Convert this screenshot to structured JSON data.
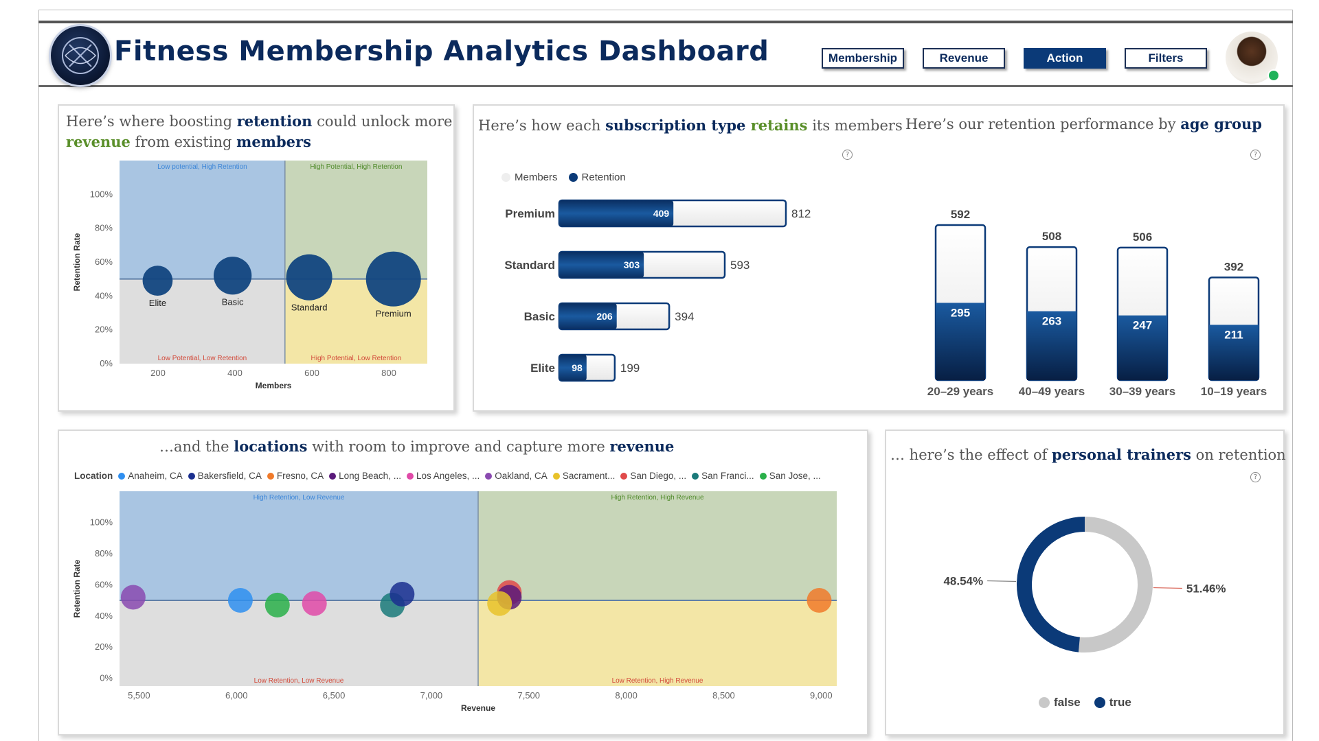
{
  "header": {
    "title": "Fitness Membership Analytics Dashboard",
    "nav": [
      "Membership",
      "Revenue",
      "Action",
      "Filters"
    ],
    "active_nav": "Action"
  },
  "colors": {
    "brand": "#0b2a5c",
    "accent_green": "#5a8f2a",
    "q_blue": "#a9c5e2",
    "q_green": "#c8d6b9",
    "q_grey": "#dedede",
    "q_yellow": "#f3e6a6",
    "bubble": "#12467f"
  },
  "retention_card": {
    "title_parts": [
      "Here’s where boosting ",
      "retention",
      " could unlock more ",
      "revenue",
      " from existing ",
      "members"
    ]
  },
  "subscription_card": {
    "title_parts": [
      "Here’s how each ",
      "subscription type",
      " retains",
      " its members"
    ],
    "legend": [
      "Members",
      "Retention"
    ]
  },
  "age_card": {
    "title_parts": [
      "Here’s our retention performance by ",
      "age group"
    ]
  },
  "location_card": {
    "title_parts": [
      "…and the ",
      "locations",
      " with room to improve and capture more ",
      "revenue"
    ],
    "legend_label": "Location",
    "legend": [
      {
        "name": "Anaheim, CA",
        "color": "#2f8ff0"
      },
      {
        "name": "Bakersfield, CA",
        "color": "#1b2f8f"
      },
      {
        "name": "Fresno, CA",
        "color": "#f07a2a"
      },
      {
        "name": "Long Beach, ...",
        "color": "#5a1a7a"
      },
      {
        "name": "Los Angeles, ...",
        "color": "#e04aa8"
      },
      {
        "name": "Oakland, CA",
        "color": "#8a4ab0"
      },
      {
        "name": "Sacrament...",
        "color": "#e8c22a"
      },
      {
        "name": "San Diego, ...",
        "color": "#e04a4a"
      },
      {
        "name": "San Franci...",
        "color": "#1a7a7a"
      },
      {
        "name": "San Jose, ...",
        "color": "#2ab04a"
      }
    ]
  },
  "trainer_card": {
    "title_parts": [
      "… here’s the effect of ",
      "personal trainers",
      " on retention"
    ],
    "legend": [
      {
        "name": "false",
        "color": "#c8c8c8"
      },
      {
        "name": "true",
        "color": "#0b3a78"
      }
    ]
  },
  "chart_data": [
    {
      "id": "retention_scatter",
      "type": "scatter",
      "title": "Here’s where boosting retention could unlock more revenue from existing members",
      "xlabel": "Members",
      "ylabel": "Retention Rate",
      "xlim": [
        100,
        900
      ],
      "ylim": [
        0,
        1.2
      ],
      "xticks": [
        200,
        400,
        600,
        800
      ],
      "xtick_labels": [
        "200",
        "400",
        "600",
        "800"
      ],
      "yticks": [
        0,
        0.2,
        0.4,
        0.6,
        0.8,
        1.0
      ],
      "ytick_labels": [
        "0%",
        "20%",
        "40%",
        "60%",
        "80%",
        "100%"
      ],
      "x_divider": 530,
      "reference_y": 0.5,
      "quadrants": [
        "Low potential, High Retention",
        "High Potential, High Retention",
        "Low Potential, Low Retention",
        "High Potential, Low Retention"
      ],
      "points": [
        {
          "label": "Elite",
          "members": 199,
          "retention": 0.49
        },
        {
          "label": "Basic",
          "members": 394,
          "retention": 0.52
        },
        {
          "label": "Standard",
          "members": 593,
          "retention": 0.51
        },
        {
          "label": "Premium",
          "members": 812,
          "retention": 0.5
        }
      ]
    },
    {
      "id": "subscription_bars",
      "type": "bar",
      "title": "Here’s how each subscription type retains its members",
      "categories": [
        "Premium",
        "Standard",
        "Basic",
        "Elite"
      ],
      "series": [
        {
          "name": "Members",
          "values": [
            812,
            593,
            394,
            199
          ]
        },
        {
          "name": "Retention",
          "values": [
            409,
            303,
            206,
            98
          ]
        }
      ]
    },
    {
      "id": "age_bars",
      "type": "bar",
      "title": "Here’s our retention performance by age group",
      "categories": [
        "20–29 years",
        "40–49 years",
        "30–39 years",
        "10–19 years"
      ],
      "series": [
        {
          "name": "Members",
          "values": [
            592,
            508,
            506,
            392
          ]
        },
        {
          "name": "Retention",
          "values": [
            295,
            263,
            247,
            211
          ]
        }
      ]
    },
    {
      "id": "location_scatter",
      "type": "scatter",
      "title": "…and the locations with room to improve and capture more revenue",
      "xlabel": "Revenue",
      "ylabel": "Retention Rate",
      "xlim": [
        5400,
        9080
      ],
      "ylim": [
        -0.05,
        1.2
      ],
      "xticks": [
        5500,
        6000,
        6500,
        7000,
        7500,
        8000,
        8500,
        9000
      ],
      "xtick_labels": [
        "5,500",
        "6,000",
        "6,500",
        "7,000",
        "7,500",
        "8,000",
        "8,500",
        "9,000"
      ],
      "yticks": [
        0,
        0.2,
        0.4,
        0.6,
        0.8,
        1.0
      ],
      "ytick_labels": [
        "0%",
        "20%",
        "40%",
        "60%",
        "80%",
        "100%"
      ],
      "x_divider": 7240,
      "reference_y": 0.5,
      "quadrants": [
        "High Retention, Low Revenue",
        "High Retention, High Revenue",
        "Low Retention, Low Revenue",
        "Low Retention, High Revenue"
      ],
      "points": [
        {
          "location": "Oakland, CA",
          "revenue": 5470,
          "retention": 0.52
        },
        {
          "location": "Anaheim, CA",
          "revenue": 6020,
          "retention": 0.5
        },
        {
          "location": "San Jose, ...",
          "revenue": 6210,
          "retention": 0.47
        },
        {
          "location": "Los Angeles, ...",
          "revenue": 6400,
          "retention": 0.48
        },
        {
          "location": "San Franci...",
          "revenue": 6800,
          "retention": 0.47
        },
        {
          "location": "Bakersfield, CA",
          "revenue": 6850,
          "retention": 0.54
        },
        {
          "location": "San Diego, ...",
          "revenue": 7400,
          "retention": 0.55
        },
        {
          "location": "Long Beach, ...",
          "revenue": 7400,
          "retention": 0.52
        },
        {
          "location": "Sacrament...",
          "revenue": 7350,
          "retention": 0.48
        },
        {
          "location": "Fresno, CA",
          "revenue": 8990,
          "retention": 0.5
        }
      ]
    },
    {
      "id": "trainer_donut",
      "type": "pie",
      "title": "… here’s the effect of personal trainers on retention",
      "slices": [
        {
          "label": "false",
          "value": 51.46,
          "display": "51.46%"
        },
        {
          "label": "true",
          "value": 48.54,
          "display": "48.54%"
        }
      ]
    }
  ]
}
